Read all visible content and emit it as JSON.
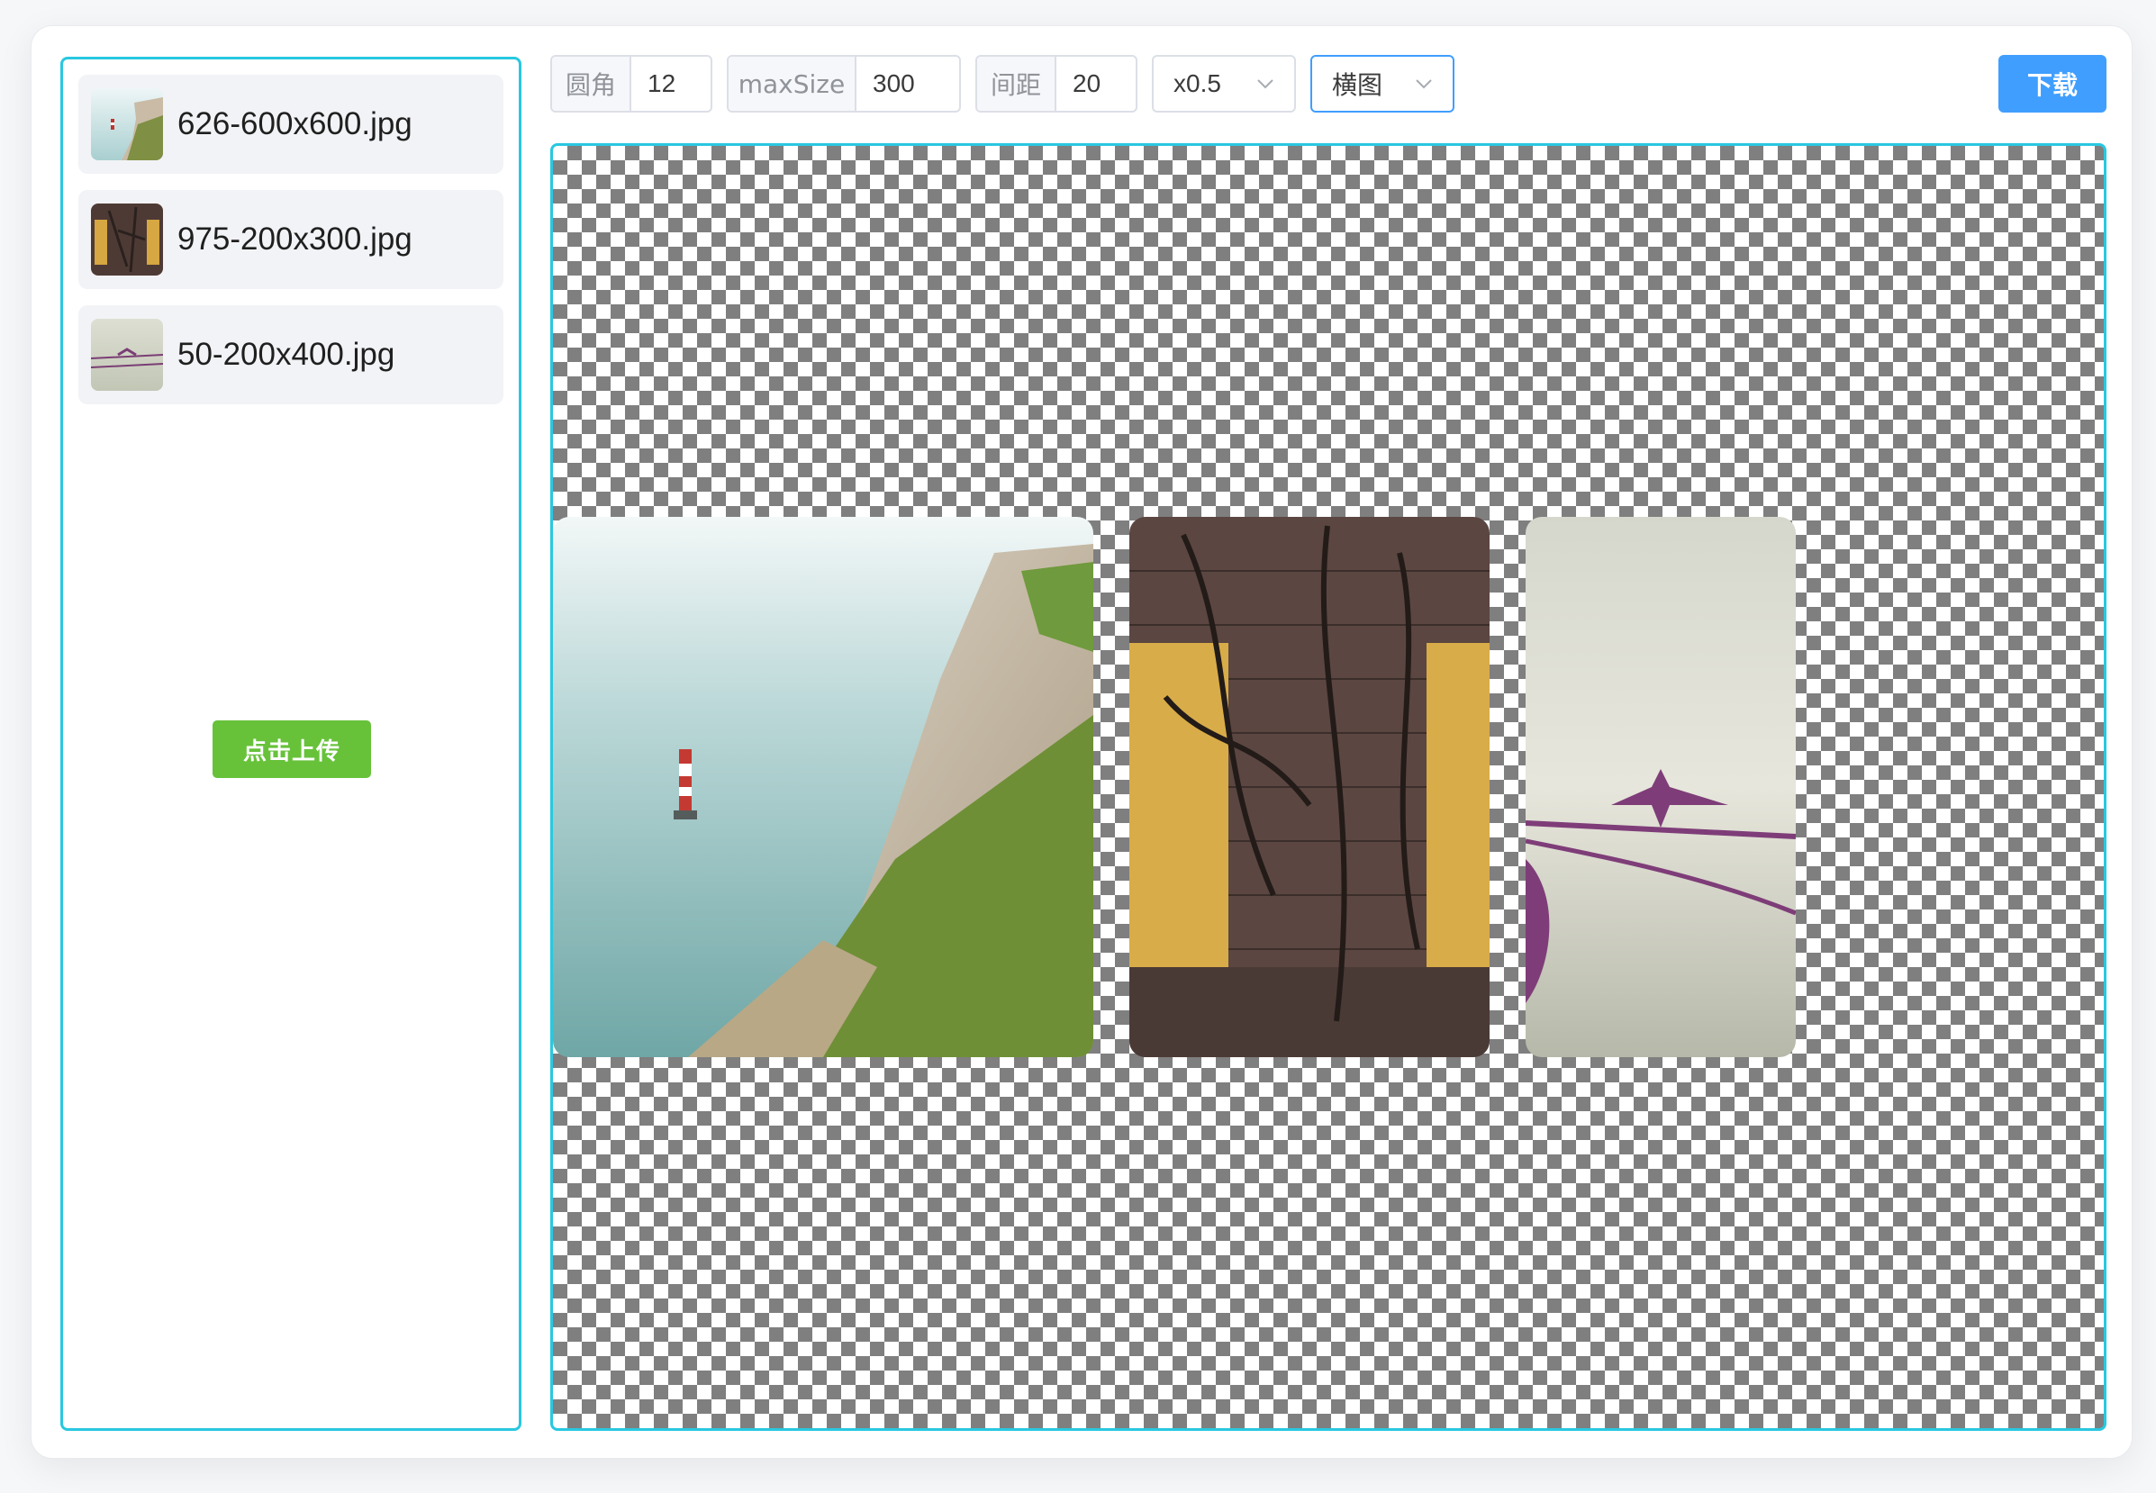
{
  "files": [
    {
      "name": "626-600x600.jpg",
      "thumb": "lighthouse-cliff-photo"
    },
    {
      "name": "975-200x300.jpg",
      "thumb": "brick-wall-photo"
    },
    {
      "name": "50-200x400.jpg",
      "thumb": "bird-on-rope-photo"
    }
  ],
  "sidebar": {
    "upload_label": "点击上传"
  },
  "toolbar": {
    "radius": {
      "label": "圆角",
      "value": "12"
    },
    "maxsize": {
      "label": "maxSize",
      "value": "300"
    },
    "gap": {
      "label": "间距",
      "value": "20"
    },
    "scale": {
      "value": "x0.5"
    },
    "layout": {
      "value": "横图"
    },
    "download_label": "下载"
  },
  "colors": {
    "accent_border": "#29c8e0",
    "upload_button": "#67c23a",
    "download_button": "#409eff"
  }
}
